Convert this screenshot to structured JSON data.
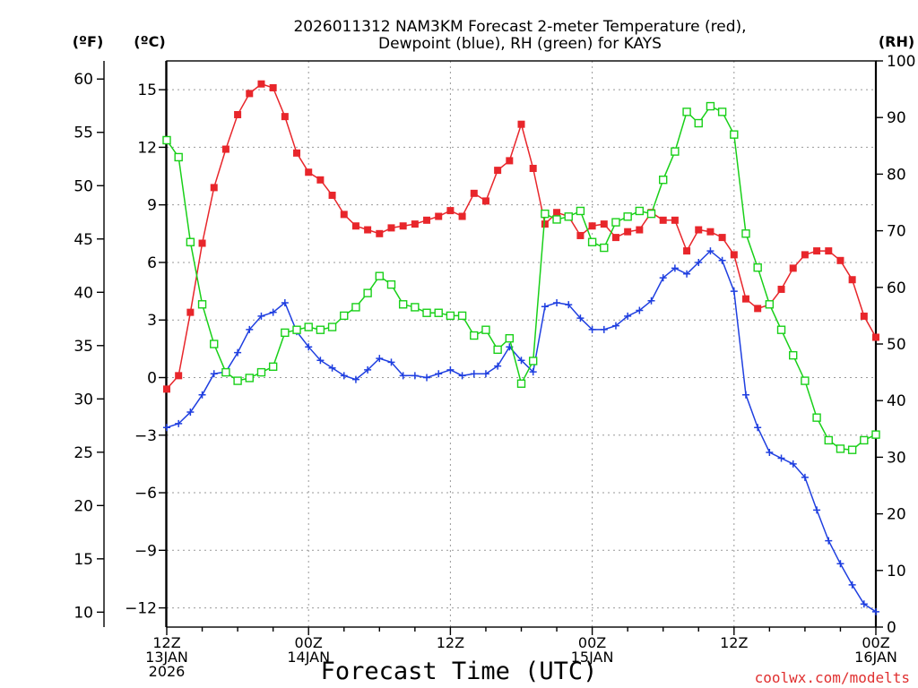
{
  "colors": {
    "temperature": "#e8262b",
    "dewpoint": "#1f3fe0",
    "rh": "#19d019",
    "axis": "#000000",
    "grid": "#999999",
    "watermark": "#e03030"
  },
  "chart_data": {
    "type": "line",
    "title": "2026011312 NAM3KM Forecast 2-meter Temperature (red),",
    "subtitle": "Dewpoint (blue), RH (green) for KAYS",
    "xlabel": "Forecast Time (UTC)",
    "watermark": "coolwx.com/modelts",
    "x_range_hours": [
      0,
      60
    ],
    "x_ticks": [
      {
        "hour": 0,
        "l1": "12Z",
        "l2": "13JAN",
        "l3": "2026"
      },
      {
        "hour": 12,
        "l1": "00Z",
        "l2": "14JAN",
        "l3": ""
      },
      {
        "hour": 24,
        "l1": "12Z",
        "l2": "",
        "l3": ""
      },
      {
        "hour": 36,
        "l1": "00Z",
        "l2": "15JAN",
        "l3": ""
      },
      {
        "hour": 48,
        "l1": "12Z",
        "l2": "",
        "l3": ""
      },
      {
        "hour": 60,
        "l1": "00Z",
        "l2": "16JAN",
        "l3": ""
      }
    ],
    "axes": {
      "fahrenheit": {
        "label": "(ºF)",
        "range": [
          8.6,
          61.7
        ],
        "ticks": [
          "60",
          "55",
          "50",
          "45",
          "40",
          "35",
          "30",
          "25",
          "20",
          "15",
          "10"
        ]
      },
      "celsius": {
        "label": "(ºC)",
        "range": [
          -13,
          16.5
        ],
        "ticks": [
          "15",
          "12",
          "9",
          "6",
          "3",
          "0",
          "−3",
          "−6",
          "−9",
          "−12"
        ]
      },
      "rh": {
        "label": "(RH)",
        "range": [
          0,
          100
        ],
        "ticks": [
          "100",
          "90",
          "80",
          "70",
          "60",
          "50",
          "40",
          "30",
          "20",
          "10",
          "0"
        ]
      }
    },
    "series": [
      {
        "name": "Temperature",
        "unit": "C",
        "color_key": "temperature",
        "marker": "filled-square",
        "hours": [
          0,
          1,
          2,
          3,
          4,
          5,
          6,
          7,
          8,
          9,
          10,
          11,
          12,
          13,
          14,
          15,
          16,
          17,
          18,
          19,
          20,
          21,
          22,
          23,
          24,
          25,
          26,
          27,
          28,
          29,
          30,
          31,
          32,
          33,
          34,
          35,
          36,
          37,
          38,
          39,
          40,
          41,
          42,
          43,
          44,
          45,
          46,
          47,
          48,
          49,
          50,
          51,
          52,
          53,
          54,
          55,
          56,
          57,
          58,
          59,
          60
        ],
        "values": [
          -0.6,
          0.1,
          3.4,
          7.0,
          9.9,
          11.9,
          13.7,
          14.8,
          15.3,
          15.1,
          13.6,
          11.7,
          10.7,
          10.3,
          9.5,
          8.5,
          7.9,
          7.7,
          7.5,
          7.8,
          7.9,
          8.0,
          8.2,
          8.4,
          8.7,
          8.4,
          9.6,
          9.2,
          10.8,
          11.3,
          13.2,
          10.9,
          8.0,
          8.6,
          8.4,
          7.4,
          7.9,
          8.0,
          7.3,
          7.6,
          7.7,
          8.6,
          8.2,
          8.2,
          6.6,
          7.7,
          7.6,
          7.3,
          6.4,
          4.1,
          3.6,
          3.8,
          4.6,
          5.7,
          6.4,
          6.6,
          6.6,
          6.1,
          5.1,
          3.2,
          2.1
        ]
      },
      {
        "name": "Dewpoint",
        "unit": "C",
        "color_key": "dewpoint",
        "marker": "plus",
        "hours": [
          0,
          1,
          2,
          3,
          4,
          5,
          6,
          7,
          8,
          9,
          10,
          11,
          12,
          13,
          14,
          15,
          16,
          17,
          18,
          19,
          20,
          21,
          22,
          23,
          24,
          25,
          26,
          27,
          28,
          29,
          30,
          31,
          32,
          33,
          34,
          35,
          36,
          37,
          38,
          39,
          40,
          41,
          42,
          43,
          44,
          45,
          46,
          47,
          48,
          49,
          50,
          51,
          52,
          53,
          54,
          55,
          56,
          57,
          58,
          59,
          60
        ],
        "values": [
          -2.6,
          -2.4,
          -1.8,
          -0.9,
          0.2,
          0.3,
          1.3,
          2.5,
          3.2,
          3.4,
          3.9,
          2.4,
          1.6,
          0.9,
          0.5,
          0.1,
          -0.1,
          0.4,
          1.0,
          0.8,
          0.1,
          0.1,
          0.0,
          0.2,
          0.4,
          0.1,
          0.2,
          0.2,
          0.6,
          1.6,
          0.9,
          0.3,
          3.7,
          3.9,
          3.8,
          3.1,
          2.5,
          2.5,
          2.7,
          3.2,
          3.5,
          4.0,
          5.2,
          5.7,
          5.4,
          6.0,
          6.6,
          6.1,
          4.5,
          -0.9,
          -2.6,
          -3.9,
          -4.2,
          -4.5,
          -5.2,
          -6.9,
          -8.5,
          -9.7,
          -10.8,
          -11.8,
          -12.2
        ]
      },
      {
        "name": "Relative Humidity",
        "unit": "%",
        "color_key": "rh",
        "marker": "open-square",
        "hours": [
          0,
          1,
          2,
          3,
          4,
          5,
          6,
          7,
          8,
          9,
          10,
          11,
          12,
          13,
          14,
          15,
          16,
          17,
          18,
          19,
          20,
          21,
          22,
          23,
          24,
          25,
          26,
          27,
          28,
          29,
          30,
          31,
          32,
          33,
          34,
          35,
          36,
          37,
          38,
          39,
          40,
          41,
          42,
          43,
          44,
          45,
          46,
          47,
          48,
          49,
          50,
          51,
          52,
          53,
          54,
          55,
          56,
          57,
          58,
          59,
          60
        ],
        "values": [
          86,
          83,
          68,
          57,
          50,
          45,
          43.5,
          44,
          45,
          46,
          52,
          52.5,
          53,
          52.5,
          53,
          55,
          56.5,
          59,
          62,
          60.5,
          57,
          56.5,
          55.5,
          55.5,
          55,
          55,
          51.5,
          52.5,
          49,
          51,
          43,
          47,
          73,
          72,
          72.5,
          73.5,
          68,
          67,
          71.5,
          72.5,
          73.5,
          73,
          79,
          84,
          91,
          89,
          92,
          91,
          87,
          69.5,
          63.5,
          57,
          52.5,
          48,
          43.5,
          37,
          33,
          31.5,
          31.3,
          33,
          34
        ]
      }
    ]
  }
}
